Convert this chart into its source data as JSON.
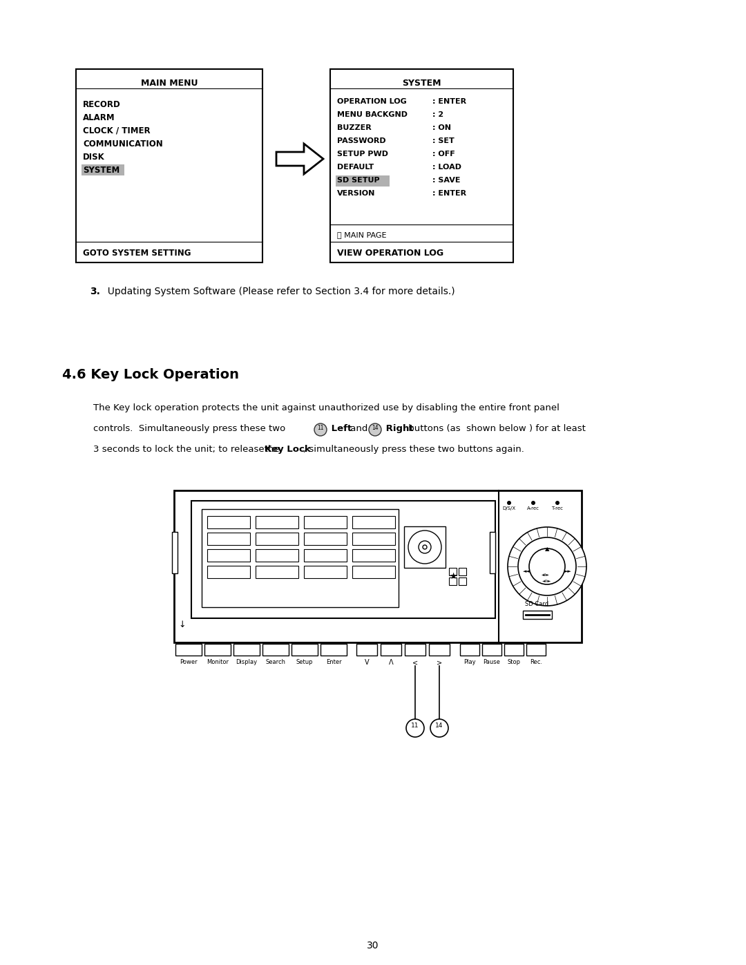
{
  "page_bg": "#ffffff",
  "page_number": "30",
  "main_menu_title": "MAIN MENU",
  "main_menu_items": [
    "RECORD",
    "ALARM",
    "CLOCK / TIMER",
    "COMMUNICATION",
    "DISK",
    "SYSTEM"
  ],
  "main_menu_highlighted": "SYSTEM",
  "main_menu_footer": "GOTO SYSTEM SETTING",
  "system_title": "SYSTEM",
  "system_items": [
    "OPERATION LOG",
    "MENU BACKGND",
    "BUZZER",
    "PASSWORD",
    "SETUP PWD",
    "DEFAULT",
    "SD SETUP",
    "VERSION"
  ],
  "system_values": [
    ": ENTER",
    ": 2",
    ": ON",
    ": SET",
    ": OFF",
    ": LOAD",
    ": SAVE",
    ": ENTER"
  ],
  "system_highlighted": "SD SETUP",
  "system_footer1": "ⓣ MAIN PAGE",
  "system_footer2": "VIEW OPERATION LOG",
  "step3_text_bold": "3.",
  "step3_text_rest": "  Updating System Software (Please refer to Section 3.4 for more details.)",
  "section_title": "4.6 Key Lock Operation",
  "para1": "The Key lock operation protects the unit against unauthorized use by disabling the entire front panel",
  "para2a": "controls.  Simultaneously press these two ",
  "para2b": " Left",
  "para2c": " and ",
  "para2d": " Right",
  "para2e": " buttons (as  shown below ) for at least",
  "para3a": "3 seconds to lock the unit; to release​the ",
  "para3b": "Key Lock",
  "para3c": ", simultaneously press these two buttons again.",
  "highlight_color": "#b0b0b0",
  "box_border": "#000000",
  "btn_labels_g1": [
    "Power",
    "Monitor",
    "Display",
    "Search",
    "Setup",
    "Enter"
  ],
  "btn_labels_g2": [
    "V",
    "Λ",
    "<",
    ">"
  ],
  "btn_labels_g3": [
    "Play",
    "Pause",
    "Stop",
    "Rec."
  ],
  "led_labels": [
    "D/S/X",
    "A-rec",
    "T-rec"
  ]
}
